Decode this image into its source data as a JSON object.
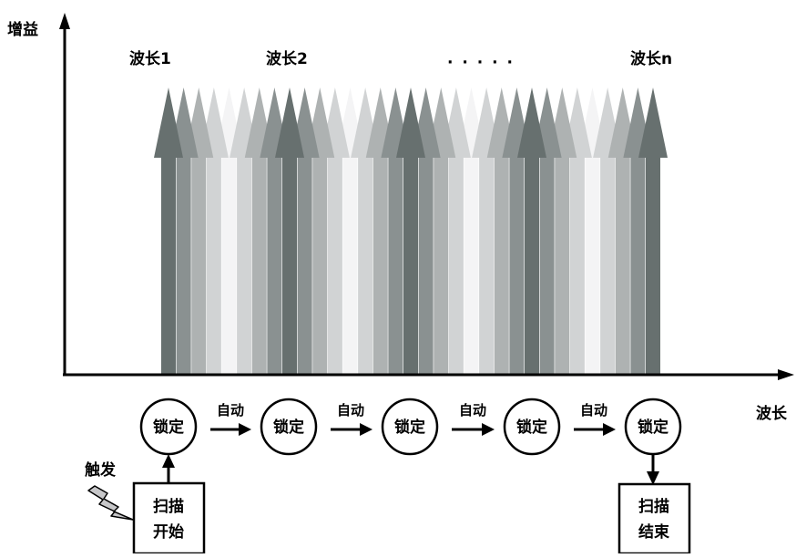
{
  "axes": {
    "y_label": "增益",
    "x_label": "波长"
  },
  "wavelengths": {
    "labels": [
      "波长1",
      "波长2",
      "· · · · ·",
      "波长n"
    ],
    "main_count": 5,
    "arrows_between": 7
  },
  "states": {
    "node_label": "锁定",
    "count": 5,
    "transition_label": "自动"
  },
  "trigger": {
    "label": "触发",
    "start_box": [
      "扫描",
      "开始"
    ],
    "end_box": [
      "扫描",
      "结束"
    ]
  },
  "colors": {
    "main_arrow": "#67706f",
    "light_arrow": "#f4f4f5",
    "axis": "#000000"
  }
}
